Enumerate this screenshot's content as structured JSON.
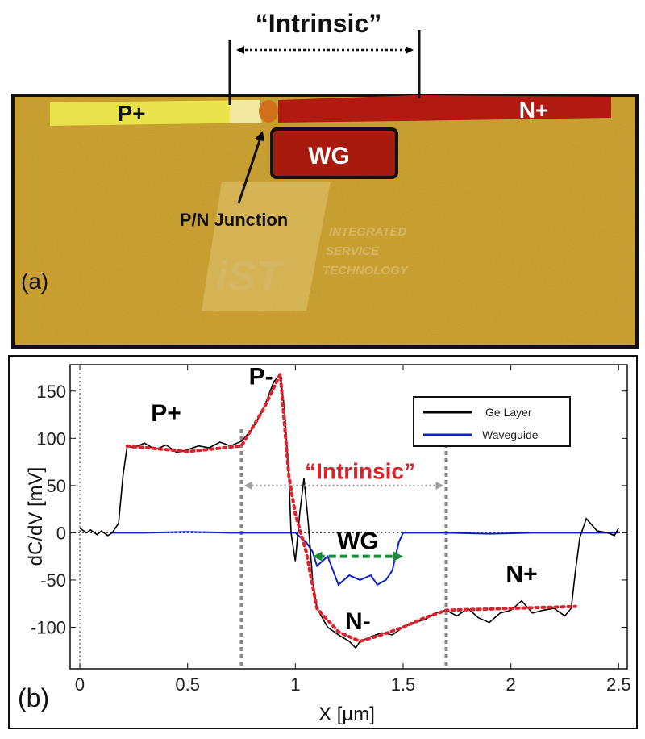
{
  "panel_a": {
    "label": "(a)",
    "intrinsic_label": "“Intrinsic”",
    "p_plus": "P+",
    "n_plus": "N+",
    "wg": "WG",
    "junction": "P/N Junction",
    "watermark_logo": "iST",
    "watermark_text": [
      "INTEGRATED",
      "SERVICE",
      "TECHNOLOGY"
    ],
    "colors": {
      "background": "#c99a1e",
      "p_region": "#e9e24a",
      "n_region": "#b01a10"
    }
  },
  "chart_data": {
    "type": "line",
    "panel_label": "(b)",
    "xlabel": "X [µm]",
    "ylabel": "dC/dV [mV]",
    "xlim": [
      -0.045,
      2.54
    ],
    "ylim": [
      -144,
      178
    ],
    "xticks": [
      0,
      0.5,
      1,
      1.5,
      2,
      2.5
    ],
    "xtick_labels": [
      "0",
      "0.5",
      "1",
      "1.5",
      "2",
      "2.5"
    ],
    "yticks": [
      -100,
      -50,
      0,
      50,
      100,
      150
    ],
    "ytick_labels": [
      "-100",
      "-50",
      "0",
      "50",
      "100",
      "150"
    ],
    "legend_placement": "top-right",
    "series": [
      {
        "name": "Ge Layer",
        "color": "#000000",
        "x": [
          0,
          0.03,
          0.05,
          0.08,
          0.1,
          0.13,
          0.15,
          0.18,
          0.2,
          0.22,
          0.25,
          0.3,
          0.35,
          0.4,
          0.45,
          0.5,
          0.55,
          0.6,
          0.65,
          0.7,
          0.75,
          0.8,
          0.85,
          0.9,
          0.93,
          0.95,
          0.97,
          0.98,
          1.0,
          1.02,
          1.04,
          1.06,
          1.08,
          1.1,
          1.15,
          1.2,
          1.25,
          1.28,
          1.3,
          1.35,
          1.4,
          1.45,
          1.5,
          1.55,
          1.6,
          1.65,
          1.7,
          1.75,
          1.8,
          1.85,
          1.9,
          1.95,
          2.0,
          2.05,
          2.1,
          2.15,
          2.2,
          2.25,
          2.28,
          2.3,
          2.32,
          2.35,
          2.4,
          2.45,
          2.48,
          2.5
        ],
        "y": [
          5,
          0,
          3,
          -2,
          2,
          -3,
          0,
          10,
          60,
          92,
          90,
          95,
          88,
          93,
          85,
          88,
          92,
          90,
          96,
          92,
          97,
          110,
          130,
          160,
          168,
          130,
          60,
          0,
          -30,
          20,
          58,
          10,
          -50,
          -80,
          -100,
          -108,
          -115,
          -122,
          -115,
          -110,
          -106,
          -108,
          -100,
          -95,
          -92,
          -85,
          -82,
          -88,
          -80,
          -90,
          -95,
          -85,
          -82,
          -72,
          -85,
          -82,
          -80,
          -88,
          -80,
          -40,
          -5,
          15,
          2,
          0,
          -3,
          5
        ]
      },
      {
        "name": "Waveguide",
        "color": "#1020c8",
        "x": [
          0.15,
          0.3,
          0.5,
          0.7,
          0.9,
          1.0,
          1.05,
          1.08,
          1.1,
          1.15,
          1.2,
          1.25,
          1.3,
          1.35,
          1.38,
          1.42,
          1.45,
          1.48,
          1.5,
          1.7,
          1.9,
          2.1,
          2.3,
          2.5
        ],
        "y": [
          0,
          0,
          1,
          0,
          0,
          0,
          -10,
          -20,
          -35,
          -25,
          -55,
          -45,
          -50,
          -45,
          -55,
          -50,
          -40,
          -10,
          0,
          0,
          -1,
          0,
          0,
          0
        ]
      }
    ],
    "fit": {
      "color": "#e0202a",
      "x": [
        0.22,
        0.5,
        0.75,
        0.85,
        0.93,
        0.97,
        1.0,
        1.05,
        1.1,
        1.2,
        1.3,
        1.4,
        1.5,
        1.6,
        1.7,
        2.0,
        2.3
      ],
      "y": [
        92,
        86,
        92,
        130,
        168,
        60,
        20,
        -20,
        -80,
        -105,
        -115,
        -108,
        -100,
        -90,
        -82,
        -80,
        -78
      ]
    },
    "region_bounds": [
      0.75,
      1.7
    ],
    "annotations": [
      {
        "text": "P+",
        "x": 0.4,
        "y": 118,
        "color": "#000000"
      },
      {
        "text": "P-",
        "x": 0.84,
        "y": 157,
        "color": "#000000"
      },
      {
        "text": "“Intrinsic”",
        "x": 1.3,
        "y": 57,
        "color": "#e0202a"
      },
      {
        "text": "WG",
        "x": 1.29,
        "y": -17,
        "color": "#000000"
      },
      {
        "text": "N-",
        "x": 1.29,
        "y": -102,
        "color": "#000000"
      },
      {
        "text": "N+",
        "x": 2.05,
        "y": -52,
        "color": "#000000"
      }
    ],
    "intrinsic_arrow": {
      "x": [
        0.78,
        1.67
      ],
      "y": 50,
      "color": "#a0a0a0"
    },
    "wg_arrow": {
      "x": [
        1.08,
        1.5
      ],
      "y": -25,
      "color": "#1a8a3a"
    }
  }
}
